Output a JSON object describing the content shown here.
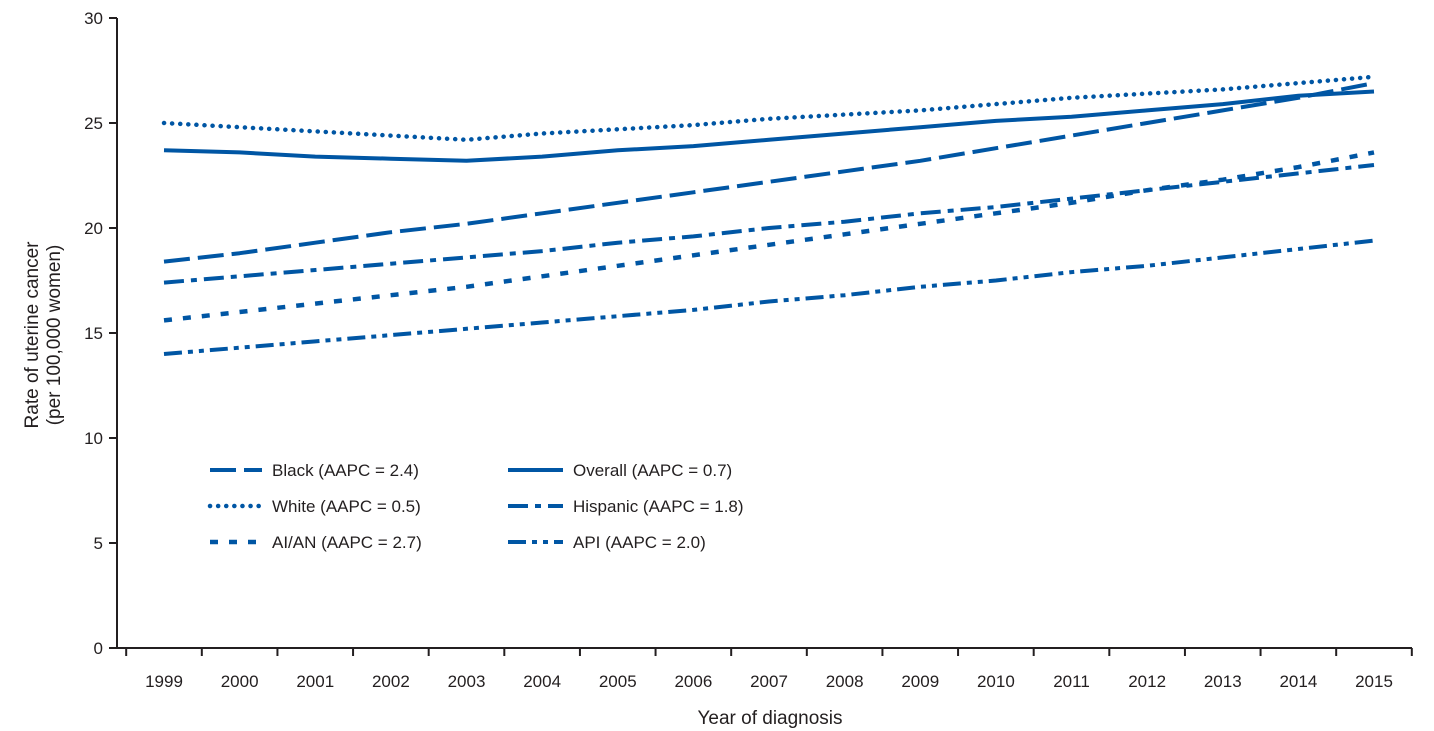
{
  "chart_data": {
    "type": "line",
    "title": "",
    "xlabel": "Year of diagnosis",
    "ylabel_line1": "Rate  of uterine cancer",
    "ylabel_line2": "(per 100,000 women)",
    "x": [
      "1999",
      "2000",
      "2001",
      "2002",
      "2003",
      "2004",
      "2005",
      "2006",
      "2007",
      "2008",
      "2009",
      "2010",
      "2011",
      "2012",
      "2013",
      "2014",
      "2015"
    ],
    "y_ticks": [
      "0",
      "5",
      "10",
      "15",
      "20",
      "25",
      "30"
    ],
    "ylim": [
      0,
      30
    ],
    "grid": false,
    "legend_position": "lower-left inside",
    "line_color": "#0056a4",
    "series": [
      {
        "name": "Black (AAPC = 2.4)",
        "dash": "dashed",
        "values": [
          18.4,
          18.8,
          19.3,
          19.8,
          20.2,
          20.7,
          21.2,
          21.7,
          22.2,
          22.7,
          23.2,
          23.8,
          24.4,
          25.0,
          25.6,
          26.2,
          26.9
        ]
      },
      {
        "name": "Overall (AAPC = 0.7)",
        "dash": "solid",
        "values": [
          23.7,
          23.6,
          23.4,
          23.3,
          23.2,
          23.4,
          23.7,
          23.9,
          24.2,
          24.5,
          24.8,
          25.1,
          25.3,
          25.6,
          25.9,
          26.3,
          26.5
        ]
      },
      {
        "name": "White (AAPC = 0.5)",
        "dash": "dotted",
        "values": [
          25.0,
          24.8,
          24.6,
          24.4,
          24.2,
          24.5,
          24.7,
          24.9,
          25.2,
          25.4,
          25.6,
          25.9,
          26.2,
          26.4,
          26.6,
          26.9,
          27.2
        ]
      },
      {
        "name": "Hispanic (AAPC = 1.8)",
        "dash": "dash-dot",
        "values": [
          17.4,
          17.7,
          18.0,
          18.3,
          18.6,
          18.9,
          19.3,
          19.6,
          20.0,
          20.3,
          20.7,
          21.0,
          21.4,
          21.8,
          22.2,
          22.6,
          23.0
        ]
      },
      {
        "name": "AI/AN (AAPC = 2.7)",
        "dash": "short-dash",
        "values": [
          15.6,
          16.0,
          16.4,
          16.8,
          17.2,
          17.7,
          18.2,
          18.7,
          19.2,
          19.7,
          20.2,
          20.7,
          21.2,
          21.8,
          22.3,
          22.9,
          23.6
        ]
      },
      {
        "name": "API (AAPC = 2.0)",
        "dash": "dash-dot-dot",
        "values": [
          14.0,
          14.3,
          14.6,
          14.9,
          15.2,
          15.5,
          15.8,
          16.1,
          16.5,
          16.8,
          17.2,
          17.5,
          17.9,
          18.2,
          18.6,
          19.0,
          19.4
        ]
      }
    ],
    "legend_order": [
      0,
      1,
      2,
      3,
      4,
      5
    ]
  }
}
